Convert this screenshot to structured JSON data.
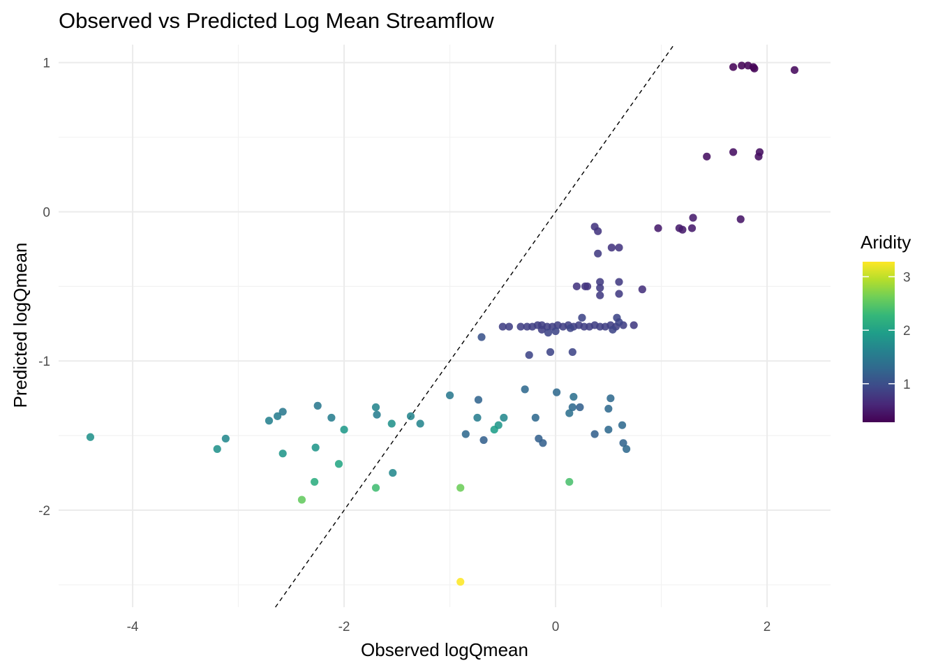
{
  "chart_data": {
    "type": "scatter",
    "title": "Observed vs Predicted Log Mean Streamflow",
    "xlabel": "Observed logQmean",
    "ylabel": "Predicted logQmean",
    "xlim": [
      -4.7,
      2.6
    ],
    "ylim": [
      -2.65,
      1.12
    ],
    "x_ticks": [
      -4,
      -2,
      0,
      2
    ],
    "x_tick_labels": [
      "-4",
      "-2",
      "0",
      "2"
    ],
    "y_ticks": [
      -2,
      -1,
      0,
      1
    ],
    "y_tick_labels": [
      "-2",
      "-1",
      "0",
      "1"
    ],
    "grid": true,
    "reference_line": {
      "type": "identity",
      "slope": 1,
      "intercept": 0,
      "style": "dashed"
    },
    "legend": {
      "title": "Aridity",
      "placement": "right",
      "type": "colorbar",
      "range": [
        0.28,
        3.28
      ],
      "ticks": [
        1,
        2,
        3
      ],
      "tick_labels": [
        "1",
        "2",
        "3"
      ]
    },
    "colormap": [
      "#440154",
      "#482878",
      "#3e4a89",
      "#31688e",
      "#26828e",
      "#1f9e89",
      "#35b779",
      "#6ece58",
      "#b5de2b",
      "#fde725"
    ],
    "points": [
      {
        "x": 1.68,
        "y": 0.97,
        "aridity": 0.3
      },
      {
        "x": 1.76,
        "y": 0.98,
        "aridity": 0.3
      },
      {
        "x": 1.82,
        "y": 0.98,
        "aridity": 0.3
      },
      {
        "x": 1.87,
        "y": 0.97,
        "aridity": 0.3
      },
      {
        "x": 1.88,
        "y": 0.96,
        "aridity": 0.3
      },
      {
        "x": 2.26,
        "y": 0.95,
        "aridity": 0.35
      },
      {
        "x": 1.68,
        "y": 0.4,
        "aridity": 0.4
      },
      {
        "x": 1.93,
        "y": 0.4,
        "aridity": 0.4
      },
      {
        "x": 1.43,
        "y": 0.37,
        "aridity": 0.4
      },
      {
        "x": 1.92,
        "y": 0.37,
        "aridity": 0.4
      },
      {
        "x": 1.75,
        "y": -0.05,
        "aridity": 0.45
      },
      {
        "x": 1.3,
        "y": -0.04,
        "aridity": 0.5
      },
      {
        "x": 0.97,
        "y": -0.11,
        "aridity": 0.5
      },
      {
        "x": 1.17,
        "y": -0.11,
        "aridity": 0.5
      },
      {
        "x": 1.2,
        "y": -0.12,
        "aridity": 0.5
      },
      {
        "x": 1.29,
        "y": -0.11,
        "aridity": 0.5
      },
      {
        "x": 0.37,
        "y": -0.1,
        "aridity": 0.75
      },
      {
        "x": 0.4,
        "y": -0.13,
        "aridity": 0.75
      },
      {
        "x": 0.53,
        "y": -0.24,
        "aridity": 0.75
      },
      {
        "x": 0.6,
        "y": -0.24,
        "aridity": 0.75
      },
      {
        "x": 0.4,
        "y": -0.28,
        "aridity": 0.8
      },
      {
        "x": 0.2,
        "y": -0.5,
        "aridity": 0.75
      },
      {
        "x": 0.28,
        "y": -0.5,
        "aridity": 0.75
      },
      {
        "x": 0.3,
        "y": -0.5,
        "aridity": 0.75
      },
      {
        "x": 0.42,
        "y": -0.47,
        "aridity": 0.8
      },
      {
        "x": 0.6,
        "y": -0.47,
        "aridity": 0.8
      },
      {
        "x": 0.42,
        "y": -0.51,
        "aridity": 0.8
      },
      {
        "x": 0.42,
        "y": -0.56,
        "aridity": 0.8
      },
      {
        "x": 0.6,
        "y": -0.55,
        "aridity": 0.8
      },
      {
        "x": 0.82,
        "y": -0.52,
        "aridity": 0.7
      },
      {
        "x": -0.5,
        "y": -0.77,
        "aridity": 0.85
      },
      {
        "x": -0.44,
        "y": -0.77,
        "aridity": 0.85
      },
      {
        "x": -0.33,
        "y": -0.77,
        "aridity": 0.85
      },
      {
        "x": -0.27,
        "y": -0.77,
        "aridity": 0.85
      },
      {
        "x": -0.22,
        "y": -0.77,
        "aridity": 0.85
      },
      {
        "x": -0.17,
        "y": -0.76,
        "aridity": 0.85
      },
      {
        "x": -0.13,
        "y": -0.76,
        "aridity": 0.85
      },
      {
        "x": -0.08,
        "y": -0.77,
        "aridity": 0.85
      },
      {
        "x": -0.03,
        "y": -0.77,
        "aridity": 0.85
      },
      {
        "x": 0.02,
        "y": -0.76,
        "aridity": 0.85
      },
      {
        "x": 0.07,
        "y": -0.77,
        "aridity": 0.85
      },
      {
        "x": 0.12,
        "y": -0.76,
        "aridity": 0.85
      },
      {
        "x": 0.17,
        "y": -0.77,
        "aridity": 0.85
      },
      {
        "x": 0.22,
        "y": -0.76,
        "aridity": 0.85
      },
      {
        "x": 0.27,
        "y": -0.77,
        "aridity": 0.85
      },
      {
        "x": 0.32,
        "y": -0.77,
        "aridity": 0.85
      },
      {
        "x": 0.37,
        "y": -0.76,
        "aridity": 0.85
      },
      {
        "x": 0.42,
        "y": -0.77,
        "aridity": 0.85
      },
      {
        "x": 0.47,
        "y": -0.77,
        "aridity": 0.85
      },
      {
        "x": 0.52,
        "y": -0.76,
        "aridity": 0.85
      },
      {
        "x": 0.57,
        "y": -0.77,
        "aridity": 0.85
      },
      {
        "x": 0.64,
        "y": -0.76,
        "aridity": 0.85
      },
      {
        "x": 0.74,
        "y": -0.76,
        "aridity": 0.8
      },
      {
        "x": -0.13,
        "y": -0.79,
        "aridity": 0.85
      },
      {
        "x": -0.07,
        "y": -0.81,
        "aridity": 0.9
      },
      {
        "x": 0.0,
        "y": -0.8,
        "aridity": 0.9
      },
      {
        "x": 0.14,
        "y": -0.78,
        "aridity": 0.9
      },
      {
        "x": 0.25,
        "y": -0.71,
        "aridity": 0.9
      },
      {
        "x": 0.54,
        "y": -0.79,
        "aridity": 0.9
      },
      {
        "x": 0.58,
        "y": -0.71,
        "aridity": 0.9
      },
      {
        "x": 0.6,
        "y": -0.74,
        "aridity": 0.9
      },
      {
        "x": -0.7,
        "y": -0.84,
        "aridity": 1.05
      },
      {
        "x": -0.25,
        "y": -0.96,
        "aridity": 0.9
      },
      {
        "x": -0.05,
        "y": -0.94,
        "aridity": 0.9
      },
      {
        "x": 0.16,
        "y": -0.94,
        "aridity": 0.9
      },
      {
        "x": -1.0,
        "y": -1.23,
        "aridity": 1.5
      },
      {
        "x": -0.29,
        "y": -1.19,
        "aridity": 1.3
      },
      {
        "x": 0.01,
        "y": -1.21,
        "aridity": 1.3
      },
      {
        "x": 0.17,
        "y": -1.24,
        "aridity": 1.4
      },
      {
        "x": -0.73,
        "y": -1.26,
        "aridity": 1.25
      },
      {
        "x": 0.52,
        "y": -1.25,
        "aridity": 1.3
      },
      {
        "x": 0.16,
        "y": -1.31,
        "aridity": 1.3
      },
      {
        "x": 0.23,
        "y": -1.31,
        "aridity": 1.2
      },
      {
        "x": 0.13,
        "y": -1.35,
        "aridity": 1.4
      },
      {
        "x": 0.5,
        "y": -1.32,
        "aridity": 1.3
      },
      {
        "x": -0.74,
        "y": -1.38,
        "aridity": 1.55
      },
      {
        "x": -0.19,
        "y": -1.38,
        "aridity": 1.3
      },
      {
        "x": -0.49,
        "y": -1.38,
        "aridity": 1.7
      },
      {
        "x": -0.54,
        "y": -1.43,
        "aridity": 1.85
      },
      {
        "x": -0.58,
        "y": -1.46,
        "aridity": 1.95
      },
      {
        "x": 0.63,
        "y": -1.43,
        "aridity": 1.3
      },
      {
        "x": 0.5,
        "y": -1.46,
        "aridity": 1.3
      },
      {
        "x": -0.85,
        "y": -1.49,
        "aridity": 1.3
      },
      {
        "x": 0.37,
        "y": -1.49,
        "aridity": 1.2
      },
      {
        "x": -0.68,
        "y": -1.53,
        "aridity": 1.2
      },
      {
        "x": -0.16,
        "y": -1.52,
        "aridity": 1.2
      },
      {
        "x": -0.12,
        "y": -1.55,
        "aridity": 1.2
      },
      {
        "x": 0.64,
        "y": -1.55,
        "aridity": 1.25
      },
      {
        "x": 0.67,
        "y": -1.59,
        "aridity": 1.3
      },
      {
        "x": -1.37,
        "y": -1.37,
        "aridity": 1.65
      },
      {
        "x": -1.28,
        "y": -1.42,
        "aridity": 1.65
      },
      {
        "x": -1.7,
        "y": -1.31,
        "aridity": 1.65
      },
      {
        "x": -1.69,
        "y": -1.36,
        "aridity": 1.55
      },
      {
        "x": -1.55,
        "y": -1.42,
        "aridity": 1.8
      },
      {
        "x": -1.54,
        "y": -1.75,
        "aridity": 1.7
      },
      {
        "x": -2.25,
        "y": -1.3,
        "aridity": 1.5
      },
      {
        "x": -2.12,
        "y": -1.38,
        "aridity": 1.55
      },
      {
        "x": -2.0,
        "y": -1.46,
        "aridity": 1.9
      },
      {
        "x": -2.27,
        "y": -1.58,
        "aridity": 1.85
      },
      {
        "x": -2.05,
        "y": -1.69,
        "aridity": 2.05
      },
      {
        "x": -2.28,
        "y": -1.81,
        "aridity": 2.15
      },
      {
        "x": -2.4,
        "y": -1.93,
        "aridity": 2.55
      },
      {
        "x": -1.7,
        "y": -1.85,
        "aridity": 2.35
      },
      {
        "x": -0.9,
        "y": -1.85,
        "aridity": 2.6
      },
      {
        "x": 0.13,
        "y": -1.81,
        "aridity": 2.4
      },
      {
        "x": -0.9,
        "y": -2.48,
        "aridity": 3.28
      },
      {
        "x": -2.58,
        "y": -1.34,
        "aridity": 1.5
      },
      {
        "x": -2.63,
        "y": -1.37,
        "aridity": 1.55
      },
      {
        "x": -2.71,
        "y": -1.4,
        "aridity": 1.6
      },
      {
        "x": -2.58,
        "y": -1.62,
        "aridity": 1.85
      },
      {
        "x": -3.12,
        "y": -1.52,
        "aridity": 1.7
      },
      {
        "x": -3.2,
        "y": -1.59,
        "aridity": 1.8
      },
      {
        "x": -4.4,
        "y": -1.51,
        "aridity": 1.8
      }
    ]
  }
}
